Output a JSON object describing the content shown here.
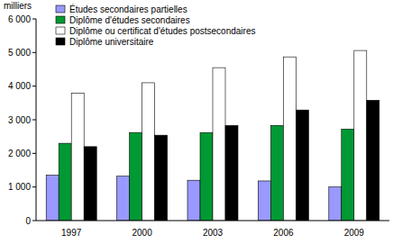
{
  "chart_data": {
    "type": "bar",
    "y_label": "milliers",
    "categories": [
      "1997",
      "2000",
      "2003",
      "2006",
      "2009"
    ],
    "series": [
      {
        "name": "Études secondaires partielles",
        "color": "#9999ff",
        "values": [
          1350,
          1320,
          1200,
          1180,
          1000
        ]
      },
      {
        "name": "Diplôme d'études secondaires",
        "color": "#009933",
        "values": [
          2300,
          2620,
          2620,
          2830,
          2720
        ]
      },
      {
        "name": "Diplôme ou certificat d'études postsecondaires",
        "color": "#ffffff",
        "values": [
          3790,
          4100,
          4550,
          4870,
          5060
        ]
      },
      {
        "name": "Diplôme universitaire",
        "color": "#000000",
        "values": [
          2200,
          2540,
          2830,
          3290,
          3580
        ]
      }
    ],
    "ylim": [
      0,
      6000
    ],
    "yticks": [
      0,
      {
        "value": 1000,
        "label": "1 000"
      },
      {
        "value": 2000,
        "label": "2 000"
      },
      {
        "value": 3000,
        "label": "3 000"
      },
      {
        "value": 4000,
        "label": "4 000"
      },
      {
        "value": 5000,
        "label": "5 000"
      },
      {
        "value": 6000,
        "label": "6 000"
      }
    ],
    "grid": false,
    "legend": "top-left"
  }
}
